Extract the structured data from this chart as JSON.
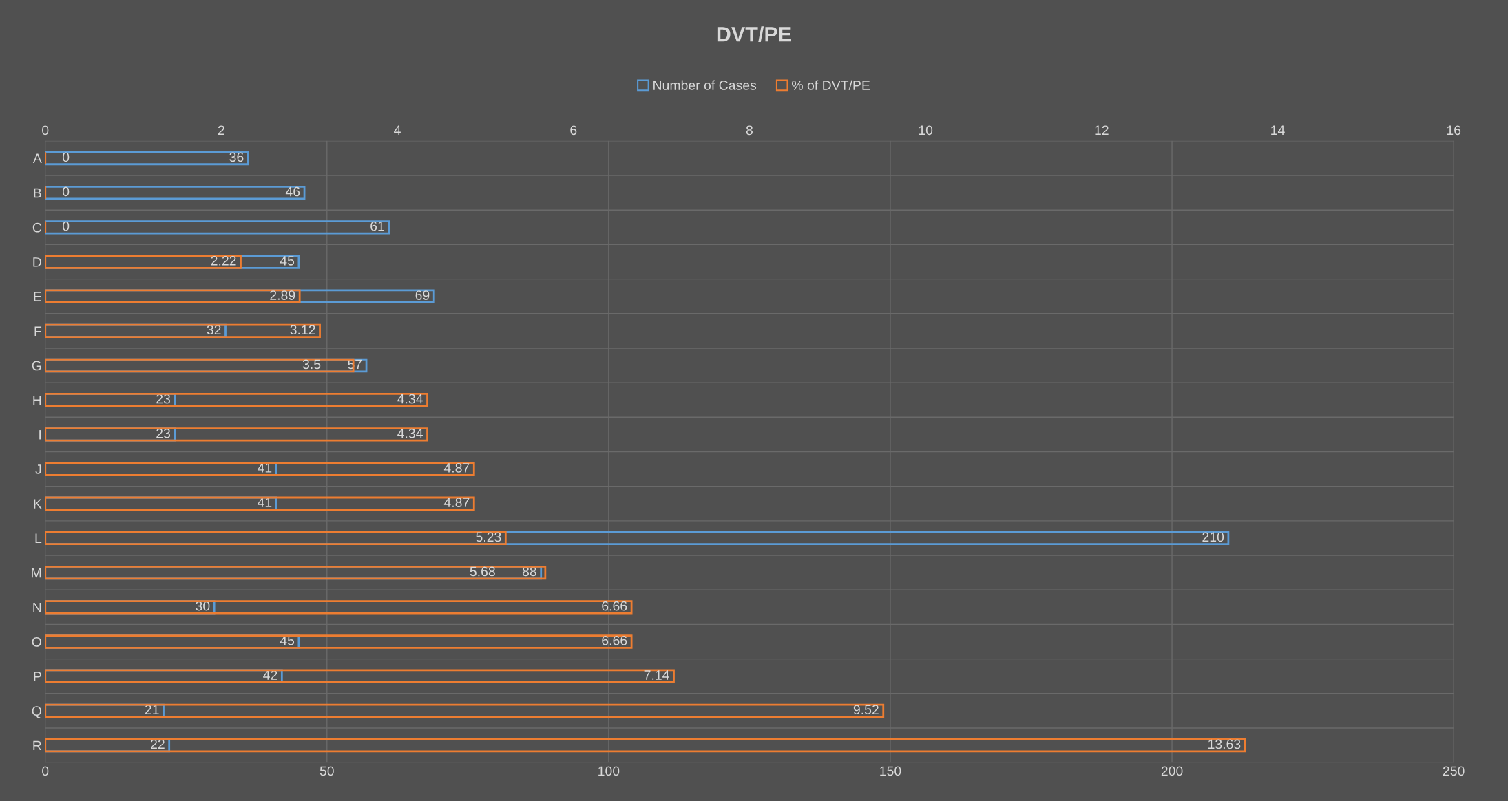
{
  "chart_data": {
    "type": "bar",
    "orientation": "horizontal",
    "title": "DVT/PE",
    "categories": [
      "A",
      "B",
      "C",
      "D",
      "E",
      "F",
      "G",
      "H",
      "I",
      "J",
      "K",
      "L",
      "M",
      "N",
      "O",
      "P",
      "Q",
      "R"
    ],
    "series": [
      {
        "name": "Number of Cases",
        "color": "#5b9bd5",
        "values": [
          36,
          46,
          61,
          45,
          69,
          32,
          57,
          23,
          23,
          41,
          41,
          210,
          88,
          30,
          45,
          42,
          21,
          22
        ]
      },
      {
        "name": "% of DVT/PE",
        "color": "#ed7d31",
        "axis": "x2",
        "values": [
          0,
          0,
          0,
          2.22,
          2.89,
          3.12,
          3.5,
          4.34,
          4.34,
          4.87,
          4.87,
          5.23,
          5.68,
          6.66,
          6.66,
          7.14,
          9.52,
          13.63
        ]
      }
    ],
    "xlim": [
      0,
      250
    ],
    "xticks": [
      0,
      50,
      100,
      150,
      200,
      250
    ],
    "x2lim": [
      0,
      16
    ],
    "x2ticks": [
      0,
      2,
      4,
      6,
      8,
      10,
      12,
      14,
      16
    ],
    "data_labels": true,
    "grid": true,
    "legend": "top"
  }
}
